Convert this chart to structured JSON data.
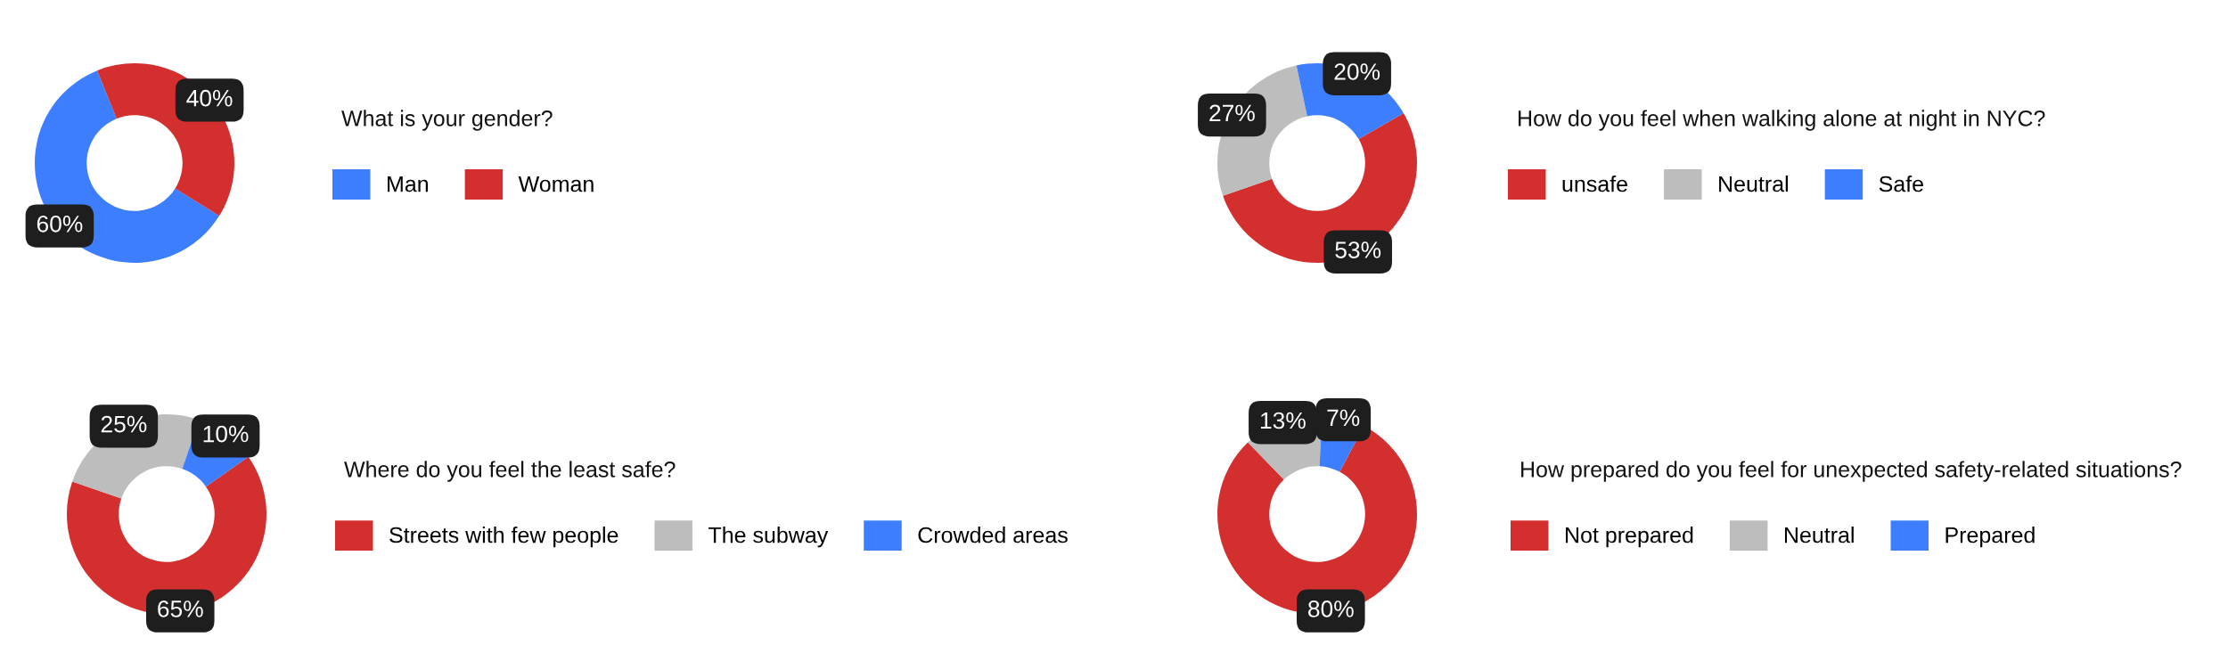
{
  "chart_data": [
    {
      "type": "donut",
      "title": "What is your gender?",
      "categories": [
        "Man",
        "Woman"
      ],
      "values": [
        60,
        40
      ],
      "colors": [
        "#3d7eff",
        "#d32f2f"
      ],
      "value_labels": [
        "60%",
        "40%"
      ],
      "legend": "right"
    },
    {
      "type": "donut",
      "title": "How do you feel when walking alone at night in NYC?",
      "categories": [
        "unsafe",
        "Neutral",
        "Safe"
      ],
      "values": [
        53,
        27,
        20
      ],
      "colors": [
        "#d32f2f",
        "#bdbdbd",
        "#3d7eff"
      ],
      "value_labels": [
        "53%",
        "27%",
        "20%"
      ],
      "legend": "right"
    },
    {
      "type": "donut",
      "title": "Where do you feel the least safe?",
      "categories": [
        "Streets with few people",
        "The subway",
        "Crowded areas"
      ],
      "values": [
        65,
        25,
        10
      ],
      "colors": [
        "#d32f2f",
        "#bdbdbd",
        "#3d7eff"
      ],
      "value_labels": [
        "65%",
        "25%",
        "10%"
      ],
      "legend": "right"
    },
    {
      "type": "donut",
      "title": "How prepared do you feel for unexpected safety-related situations?",
      "categories": [
        "Not prepared",
        "Neutral",
        "Prepared"
      ],
      "values": [
        80,
        13,
        7
      ],
      "colors": [
        "#d32f2f",
        "#bdbdbd",
        "#3d7eff"
      ],
      "value_labels": [
        "80%",
        "13%",
        "7%"
      ],
      "legend": "right"
    }
  ]
}
